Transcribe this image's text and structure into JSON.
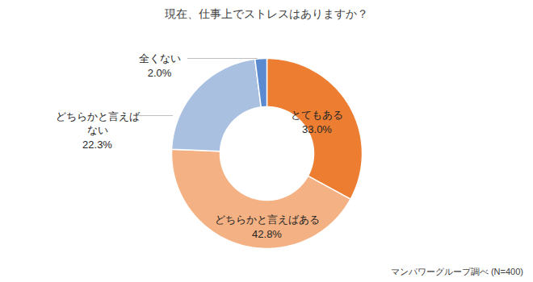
{
  "chart_data": {
    "type": "donut",
    "title": "現在、仕事上でストレスはありますか？",
    "caption": "マンパワーグループ調べ (N=400)",
    "categories": [
      "とてもある",
      "どちらかと言えばある",
      "どちらかと言えば\nない",
      "全くない"
    ],
    "values": [
      33.0,
      42.8,
      22.3,
      2.0
    ],
    "value_labels": [
      "33.0%",
      "42.8%",
      "22.3%",
      "2.0%"
    ],
    "colors": [
      "#ed7d31",
      "#f4b183",
      "#a9c0e1",
      "#5b8ad0"
    ],
    "data_labels": true
  }
}
